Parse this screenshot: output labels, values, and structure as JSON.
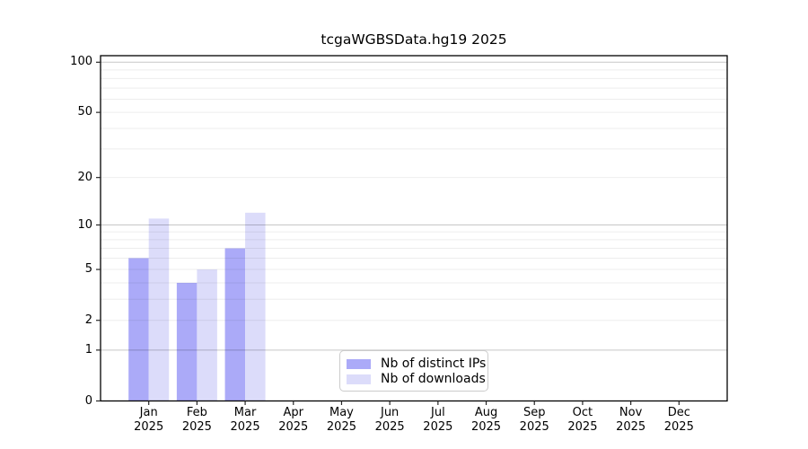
{
  "chart_data": {
    "type": "bar",
    "title": "tcgaWGBSData.hg19 2025",
    "x_categories": [
      "Jan",
      "Feb",
      "Mar",
      "Apr",
      "May",
      "Jun",
      "Jul",
      "Aug",
      "Sep",
      "Oct",
      "Nov",
      "Dec"
    ],
    "x_year": "2025",
    "series": [
      {
        "name": "Nb of distinct IPs",
        "color": "#abaaf8",
        "values": [
          6,
          4,
          7,
          0,
          0,
          0,
          0,
          0,
          0,
          0,
          0,
          0
        ]
      },
      {
        "name": "Nb of downloads",
        "color": "#dcdcfa",
        "values": [
          11,
          5,
          12,
          0,
          0,
          0,
          0,
          0,
          0,
          0,
          0,
          0
        ]
      }
    ],
    "y_scale": "log1p",
    "ylim": [
      0,
      110
    ],
    "y_tick_labels": [
      "0",
      "1",
      "2",
      "5",
      "10",
      "20",
      "50",
      "100"
    ],
    "y_ticks": [
      0,
      1,
      2,
      5,
      10,
      20,
      50,
      100
    ],
    "y_major_gridlines": [
      1,
      10,
      100
    ],
    "y_minor_gridlines": [
      2,
      3,
      4,
      5,
      6,
      7,
      8,
      9,
      20,
      30,
      40,
      50,
      60,
      70,
      80,
      90
    ],
    "grid": "on",
    "legend_position": "bottom-center"
  },
  "colors": {
    "axis_frame": "#000000",
    "grid_major": "rgba(0,0,0,0.22)",
    "grid_minor": "rgba(0,0,0,0.07)",
    "tick": "#262626"
  }
}
